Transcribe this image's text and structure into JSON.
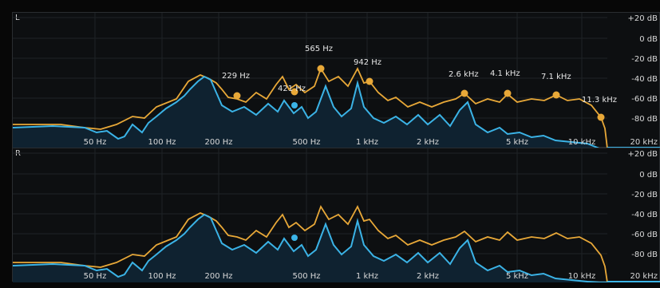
{
  "channels": {
    "left": "L",
    "right": "R"
  },
  "db_scale": [
    "+20 dB",
    "0 dB",
    "-20 dB",
    "-40 dB",
    "-60 dB",
    "-80 dB",
    "20 kHz"
  ],
  "freq_ticks": [
    "50 Hz",
    "100 Hz",
    "200 Hz",
    "500 Hz",
    "1 kHz",
    "2 kHz",
    "5 kHz",
    "10 kHz"
  ],
  "peaks": [
    "229 Hz",
    "421 Hz",
    "565 Hz",
    "942 Hz",
    "2.6 kHz",
    "4.1 kHz",
    "7.1 kHz",
    "11.3 kHz"
  ],
  "colors": {
    "peak_curve": "#e8a838",
    "spectrum": "#3bb3e6",
    "fill": "#0f2230",
    "background": "#0d0f11",
    "grid": "#1f2326"
  }
}
